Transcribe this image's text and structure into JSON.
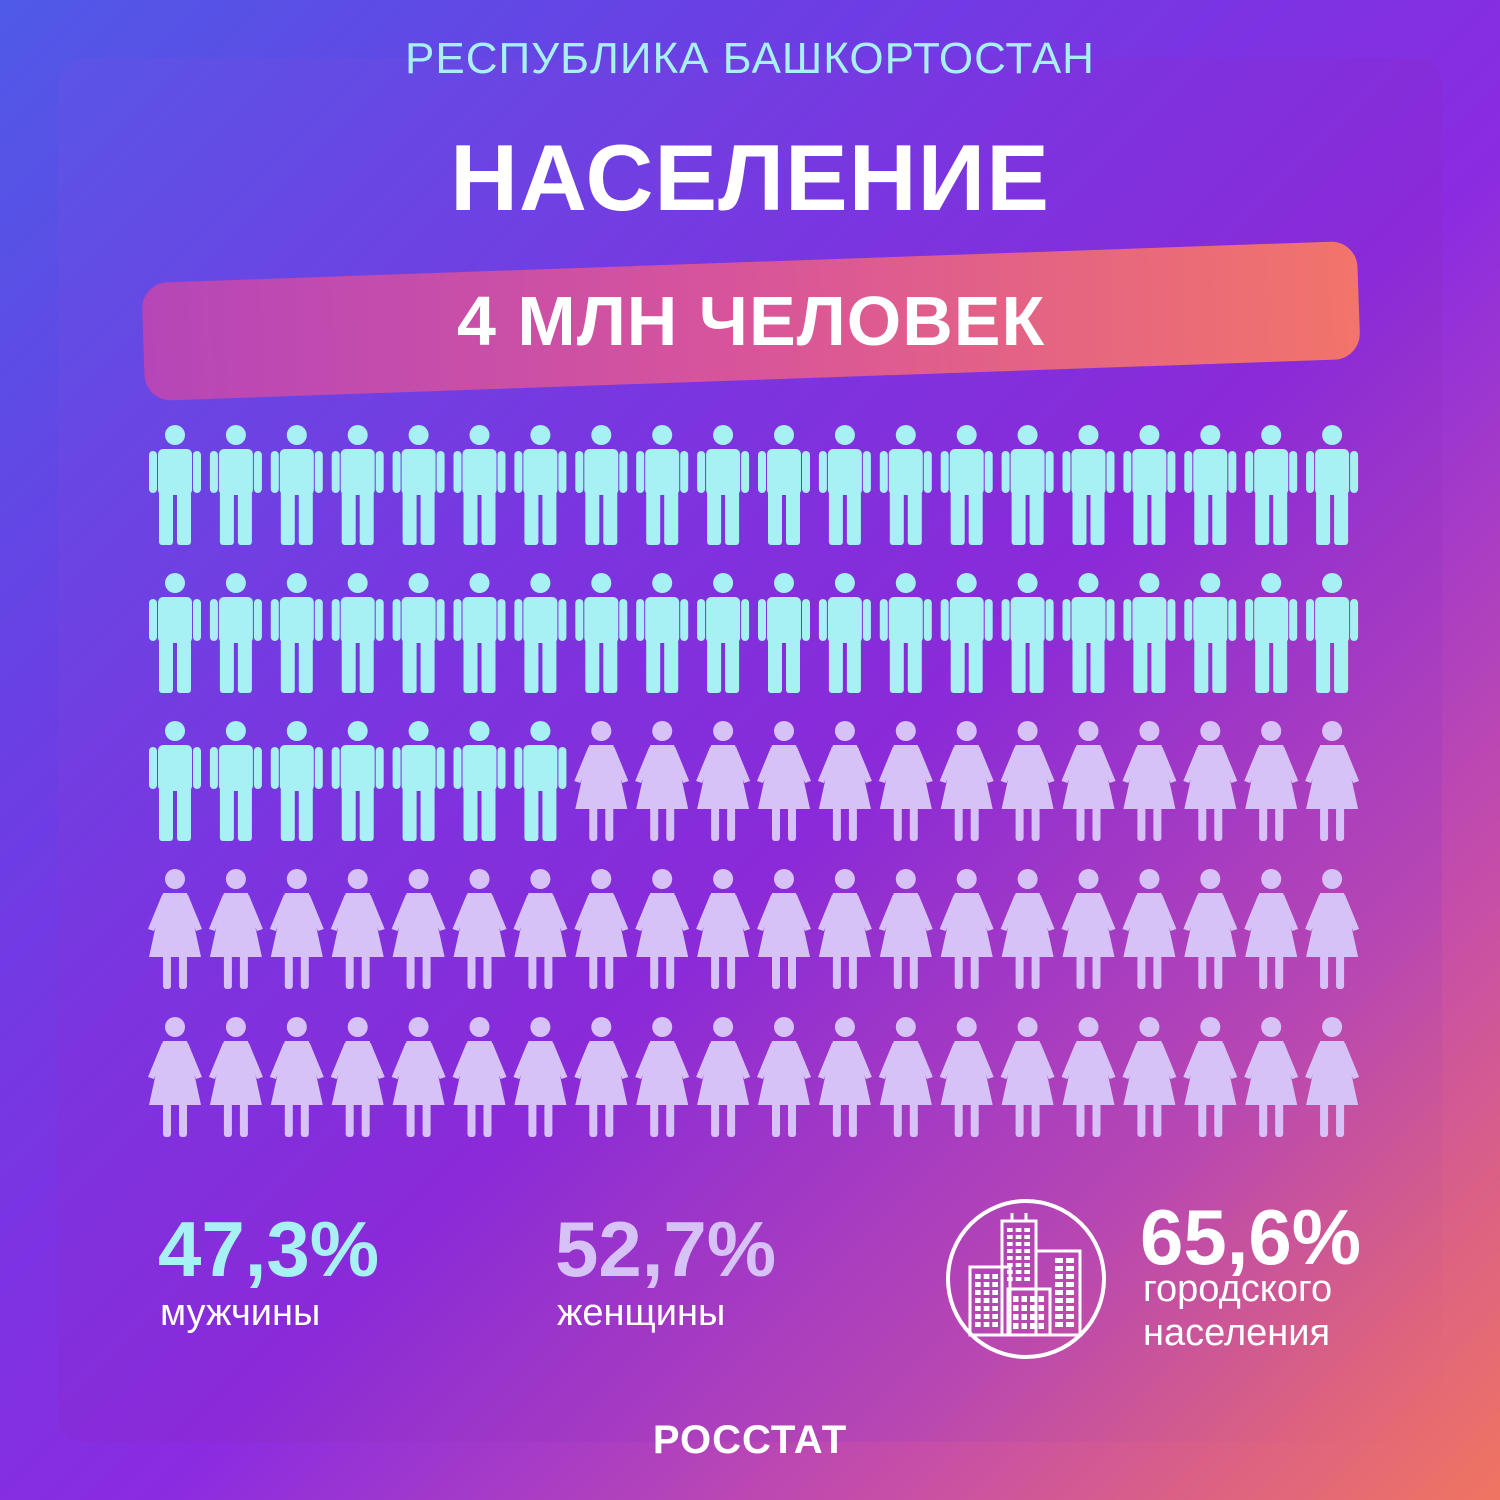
{
  "header": {
    "region": "РЕСПУБЛИКА БАШКОРТОСТАН",
    "title": "НАСЕЛЕНИЕ",
    "total": "4 МЛН ЧЕЛОВЕК"
  },
  "stats": {
    "men": {
      "value": "47,3%",
      "label": "мужчины"
    },
    "women": {
      "value": "52,7%",
      "label": "женщины"
    },
    "urban": {
      "value": "65,6%",
      "label_line1": "городского",
      "label_line2": "населения"
    }
  },
  "footer": {
    "source": "РОССТАТ"
  },
  "colors": {
    "men": "#a7f0f4",
    "women": "#d7c2f7",
    "text": "#ffffff"
  },
  "icons": {
    "men_figure": "man-icon",
    "women_figure": "woman-icon",
    "urban": "city-buildings-icon"
  },
  "chart_data": {
    "type": "pictogram",
    "categories": [
      "мужчины",
      "женщины"
    ],
    "values": [
      47.3,
      52.7
    ],
    "units": "%",
    "total_icons": 100,
    "icon_counts": [
      47,
      53
    ],
    "rows": 5,
    "columns": 20
  }
}
